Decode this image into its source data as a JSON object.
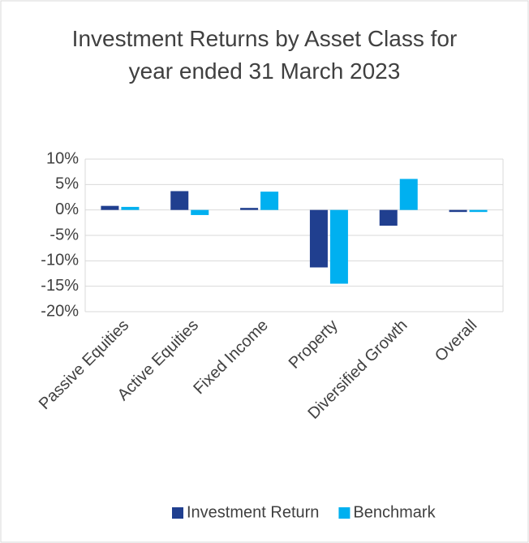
{
  "chart_data": {
    "type": "bar",
    "title": "Investment Returns by Asset Class for year ended 31 March 2023",
    "categories": [
      "Passive Equities",
      "Active Equities",
      "Fixed Income",
      "Property",
      "Diversified Growth",
      "Overall"
    ],
    "series": [
      {
        "name": "Investment Return",
        "color": "#203f8f",
        "values": [
          0.8,
          3.7,
          0.4,
          -11.3,
          -3.1,
          -0.4
        ]
      },
      {
        "name": "Benchmark",
        "color": "#00b0f0",
        "values": [
          0.6,
          -1.0,
          3.6,
          -14.5,
          6.1,
          -0.4
        ]
      }
    ],
    "ylim": [
      -20,
      10
    ],
    "yticks": [
      {
        "value": -20,
        "label": "-20%"
      },
      {
        "value": -15,
        "label": "-15%"
      },
      {
        "value": -10,
        "label": "-10%"
      },
      {
        "value": -5,
        "label": "-5%"
      },
      {
        "value": 0,
        "label": "0%"
      },
      {
        "value": 5,
        "label": "5%"
      },
      {
        "value": 10,
        "label": "10%"
      }
    ],
    "grid": true,
    "legend": "bottom"
  }
}
